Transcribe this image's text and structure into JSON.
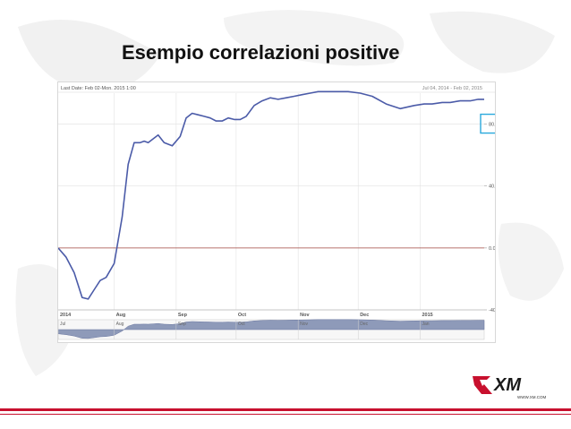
{
  "slide": {
    "title": "Esempio correlazioni positive"
  },
  "chart_header": {
    "last_date": "Last Date: Feb 02-Mon. 2015 1:00",
    "range": "Jul 04, 2014 - Feb 02, 2015"
  },
  "logo": {
    "text": "XM",
    "url_text": "WWW.XM.COM"
  },
  "colors": {
    "line": "#4b5ba8",
    "zero_line": "#a0453f",
    "highlight": "#2aa8dc",
    "navigator_fill": "#8e9ab9",
    "accent_red": "#c8102e"
  },
  "chart_data": {
    "type": "line",
    "title": "",
    "ylim": [
      -40,
      100
    ],
    "x_ticks": [
      "2014",
      "Aug",
      "Sep",
      "Oct",
      "Nov",
      "Dec",
      "2015"
    ],
    "y_ticks": [
      "80.0%",
      "40.0%",
      "0.0%",
      "-40.0%"
    ],
    "y_tick_values": [
      80,
      40,
      0,
      -40
    ],
    "highlighted_tick": "80.0%",
    "navigator_ticks": [
      "Jul",
      "Aug",
      "Sep",
      "Oct",
      "Nov",
      "Dec",
      "Jan"
    ],
    "grid": true,
    "series": [
      {
        "x": [
          "2014-07-04",
          "2014-07-08",
          "2014-07-12",
          "2014-07-16",
          "2014-07-19",
          "2014-07-22",
          "2014-07-25",
          "2014-07-28",
          "2014-08-01",
          "2014-08-05",
          "2014-08-08",
          "2014-08-11",
          "2014-08-14",
          "2014-08-16",
          "2014-08-18",
          "2014-08-20",
          "2014-08-23",
          "2014-08-26",
          "2014-08-30",
          "2014-09-03",
          "2014-09-06",
          "2014-09-09",
          "2014-09-12",
          "2014-09-15",
          "2014-09-18",
          "2014-09-21",
          "2014-09-24",
          "2014-09-27",
          "2014-09-30",
          "2014-10-03",
          "2014-10-06",
          "2014-10-10",
          "2014-10-14",
          "2014-10-18",
          "2014-10-22",
          "2014-10-26",
          "2014-10-30",
          "2014-11-03",
          "2014-11-07",
          "2014-11-11",
          "2014-11-15",
          "2014-11-20",
          "2014-11-26",
          "2014-12-02",
          "2014-12-08",
          "2014-12-15",
          "2014-12-22",
          "2014-12-29",
          "2015-01-03",
          "2015-01-07",
          "2015-01-12",
          "2015-01-16",
          "2015-01-21",
          "2015-01-26",
          "2015-01-30",
          "2015-02-02"
        ],
        "y": [
          0,
          -6,
          -16,
          -32,
          -33,
          -27,
          -21,
          -19,
          -10,
          20,
          54,
          68,
          68,
          69,
          68,
          70,
          73,
          68,
          66,
          72,
          84,
          87,
          86,
          85,
          84,
          82,
          82,
          84,
          83,
          83,
          85,
          92,
          95,
          97,
          96,
          97,
          98,
          99,
          100,
          101,
          101,
          101,
          101,
          100,
          98,
          93,
          90,
          92,
          93,
          93,
          94,
          94,
          95,
          95,
          96,
          96
        ]
      }
    ]
  }
}
